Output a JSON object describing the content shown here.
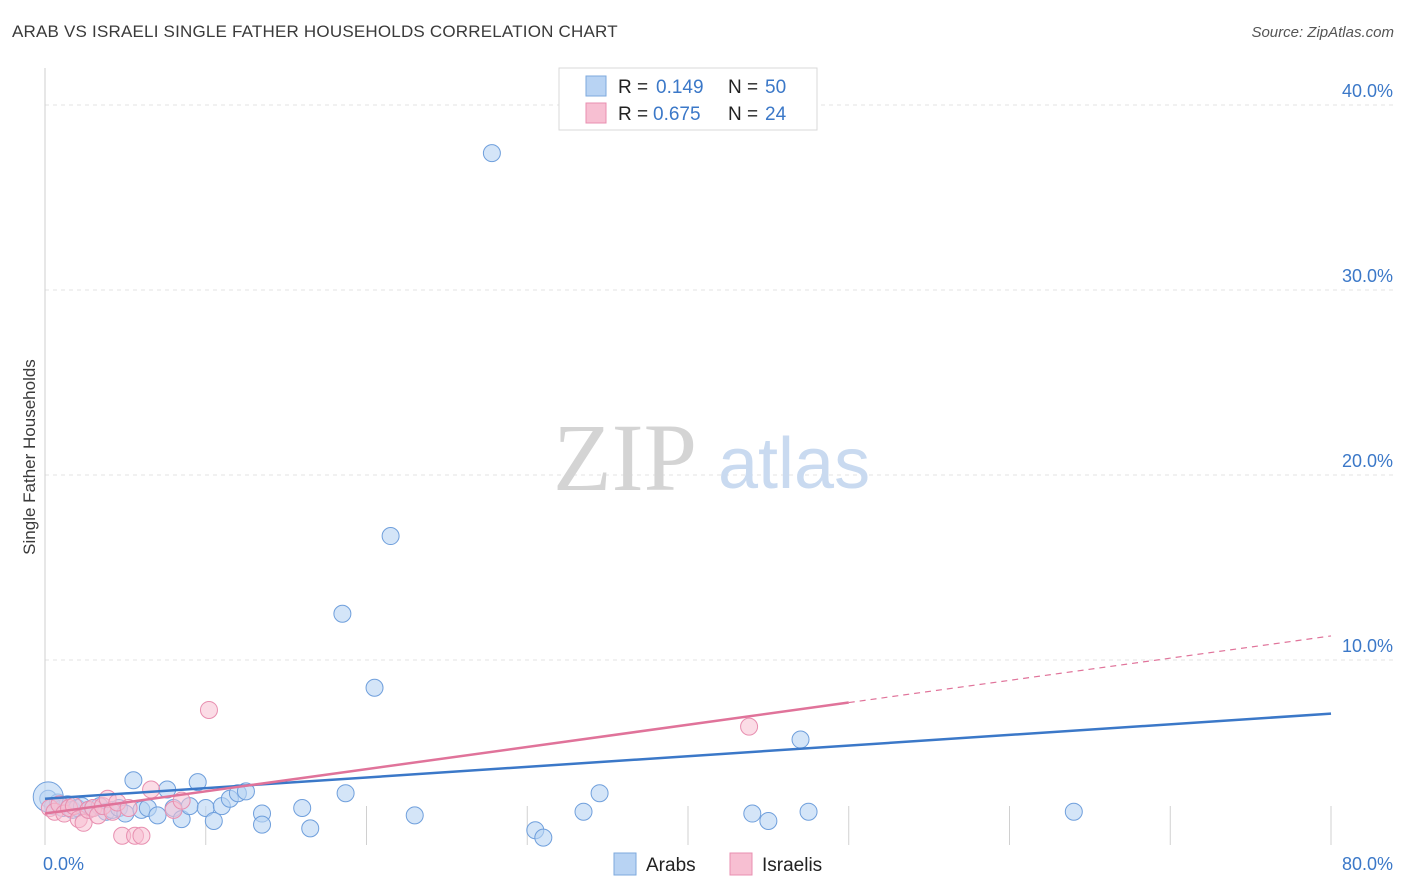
{
  "title": "ARAB VS ISRAELI SINGLE FATHER HOUSEHOLDS CORRELATION CHART",
  "source": "Source: ZipAtlas.com",
  "watermark": {
    "zip": "ZIP",
    "atlas": "atlas"
  },
  "colors": {
    "arabs": "#3b78c8",
    "arabs_fill": "#b8d3f3",
    "israelis": "#e0739a",
    "israelis_fill": "#f7bfd2",
    "axis_text": "#3b78c8",
    "grid": "#e3e3e3"
  },
  "legend": {
    "rows": [
      {
        "r_label": "R = ",
        "r_value": "0.149",
        "n_label": "N = ",
        "n_value": "50"
      },
      {
        "r_label": "R = ",
        "r_value": "0.675",
        "n_label": "N = ",
        "n_value": "24"
      }
    ]
  },
  "bottom_legend": [
    "Arabs",
    "Israelis"
  ],
  "chart_data": {
    "type": "scatter",
    "title": "ARAB VS ISRAELI SINGLE FATHER HOUSEHOLDS CORRELATION CHART",
    "xlabel": "",
    "ylabel": "Single Father Households",
    "xlim": [
      0,
      80
    ],
    "ylim": [
      0,
      42
    ],
    "x_tick_labels": [
      "0.0%",
      "80.0%"
    ],
    "y_ticks": [
      10,
      20,
      30,
      40
    ],
    "y_tick_labels": [
      "10.0%",
      "20.0%",
      "30.0%",
      "40.0%"
    ],
    "grid": true,
    "legend_position": "top-center",
    "series": [
      {
        "name": "Arabs",
        "r": 0.149,
        "n": 50,
        "trend": {
          "x0": 0,
          "y0": 2.5,
          "x1": 80,
          "y1": 7.1
        },
        "points": [
          [
            0.2,
            2.5
          ],
          [
            0.5,
            2.1
          ],
          [
            0.8,
            2.3
          ],
          [
            1.1,
            2.0
          ],
          [
            1.4,
            2.2
          ],
          [
            1.7,
            1.9
          ],
          [
            2.0,
            2.0
          ],
          [
            2.3,
            2.1
          ],
          [
            2.7,
            1.9
          ],
          [
            3.0,
            2.0
          ],
          [
            3.4,
            2.1
          ],
          [
            3.8,
            1.8
          ],
          [
            4.2,
            1.9
          ],
          [
            4.6,
            2.0
          ],
          [
            5.0,
            1.7
          ],
          [
            5.5,
            3.5
          ],
          [
            6.0,
            1.9
          ],
          [
            6.4,
            2.0
          ],
          [
            7.0,
            1.6
          ],
          [
            7.6,
            3.0
          ],
          [
            8.0,
            2.0
          ],
          [
            8.5,
            1.4
          ],
          [
            9.0,
            2.1
          ],
          [
            9.5,
            3.4
          ],
          [
            10.0,
            2.0
          ],
          [
            10.5,
            1.3
          ],
          [
            11.0,
            2.1
          ],
          [
            11.5,
            2.5
          ],
          [
            12.0,
            2.8
          ],
          [
            12.5,
            2.9
          ],
          [
            13.5,
            1.7
          ],
          [
            13.5,
            1.1
          ],
          [
            16.0,
            2.0
          ],
          [
            16.5,
            0.9
          ],
          [
            18.5,
            12.5
          ],
          [
            18.7,
            2.8
          ],
          [
            20.5,
            8.5
          ],
          [
            21.5,
            16.7
          ],
          [
            23.0,
            1.6
          ],
          [
            27.8,
            37.4
          ],
          [
            30.5,
            0.8
          ],
          [
            31.0,
            0.4
          ],
          [
            33.5,
            1.8
          ],
          [
            34.5,
            2.8
          ],
          [
            44.0,
            1.7
          ],
          [
            45.0,
            1.3
          ],
          [
            47.0,
            5.7
          ],
          [
            47.5,
            1.8
          ],
          [
            64.0,
            1.8
          ],
          [
            0.2,
            2.6
          ]
        ]
      },
      {
        "name": "Israelis",
        "r": 0.675,
        "n": 24,
        "trend": {
          "x0": 0,
          "y0": 1.7,
          "x1": 50,
          "y1": 7.7,
          "dash_x1": 80,
          "dash_y1": 11.3
        },
        "points": [
          [
            0.3,
            2.0
          ],
          [
            0.6,
            1.8
          ],
          [
            0.9,
            2.2
          ],
          [
            1.2,
            1.7
          ],
          [
            1.5,
            2.0
          ],
          [
            1.8,
            2.1
          ],
          [
            2.1,
            1.4
          ],
          [
            2.4,
            1.2
          ],
          [
            2.7,
            1.9
          ],
          [
            3.0,
            2.0
          ],
          [
            3.3,
            1.6
          ],
          [
            3.6,
            2.1
          ],
          [
            3.9,
            2.5
          ],
          [
            4.2,
            1.8
          ],
          [
            4.5,
            2.3
          ],
          [
            4.8,
            0.5
          ],
          [
            5.2,
            2.0
          ],
          [
            5.6,
            0.5
          ],
          [
            6.0,
            0.5
          ],
          [
            6.6,
            3.0
          ],
          [
            8.0,
            1.9
          ],
          [
            8.5,
            2.4
          ],
          [
            10.2,
            7.3
          ],
          [
            43.8,
            6.4
          ]
        ]
      }
    ]
  }
}
